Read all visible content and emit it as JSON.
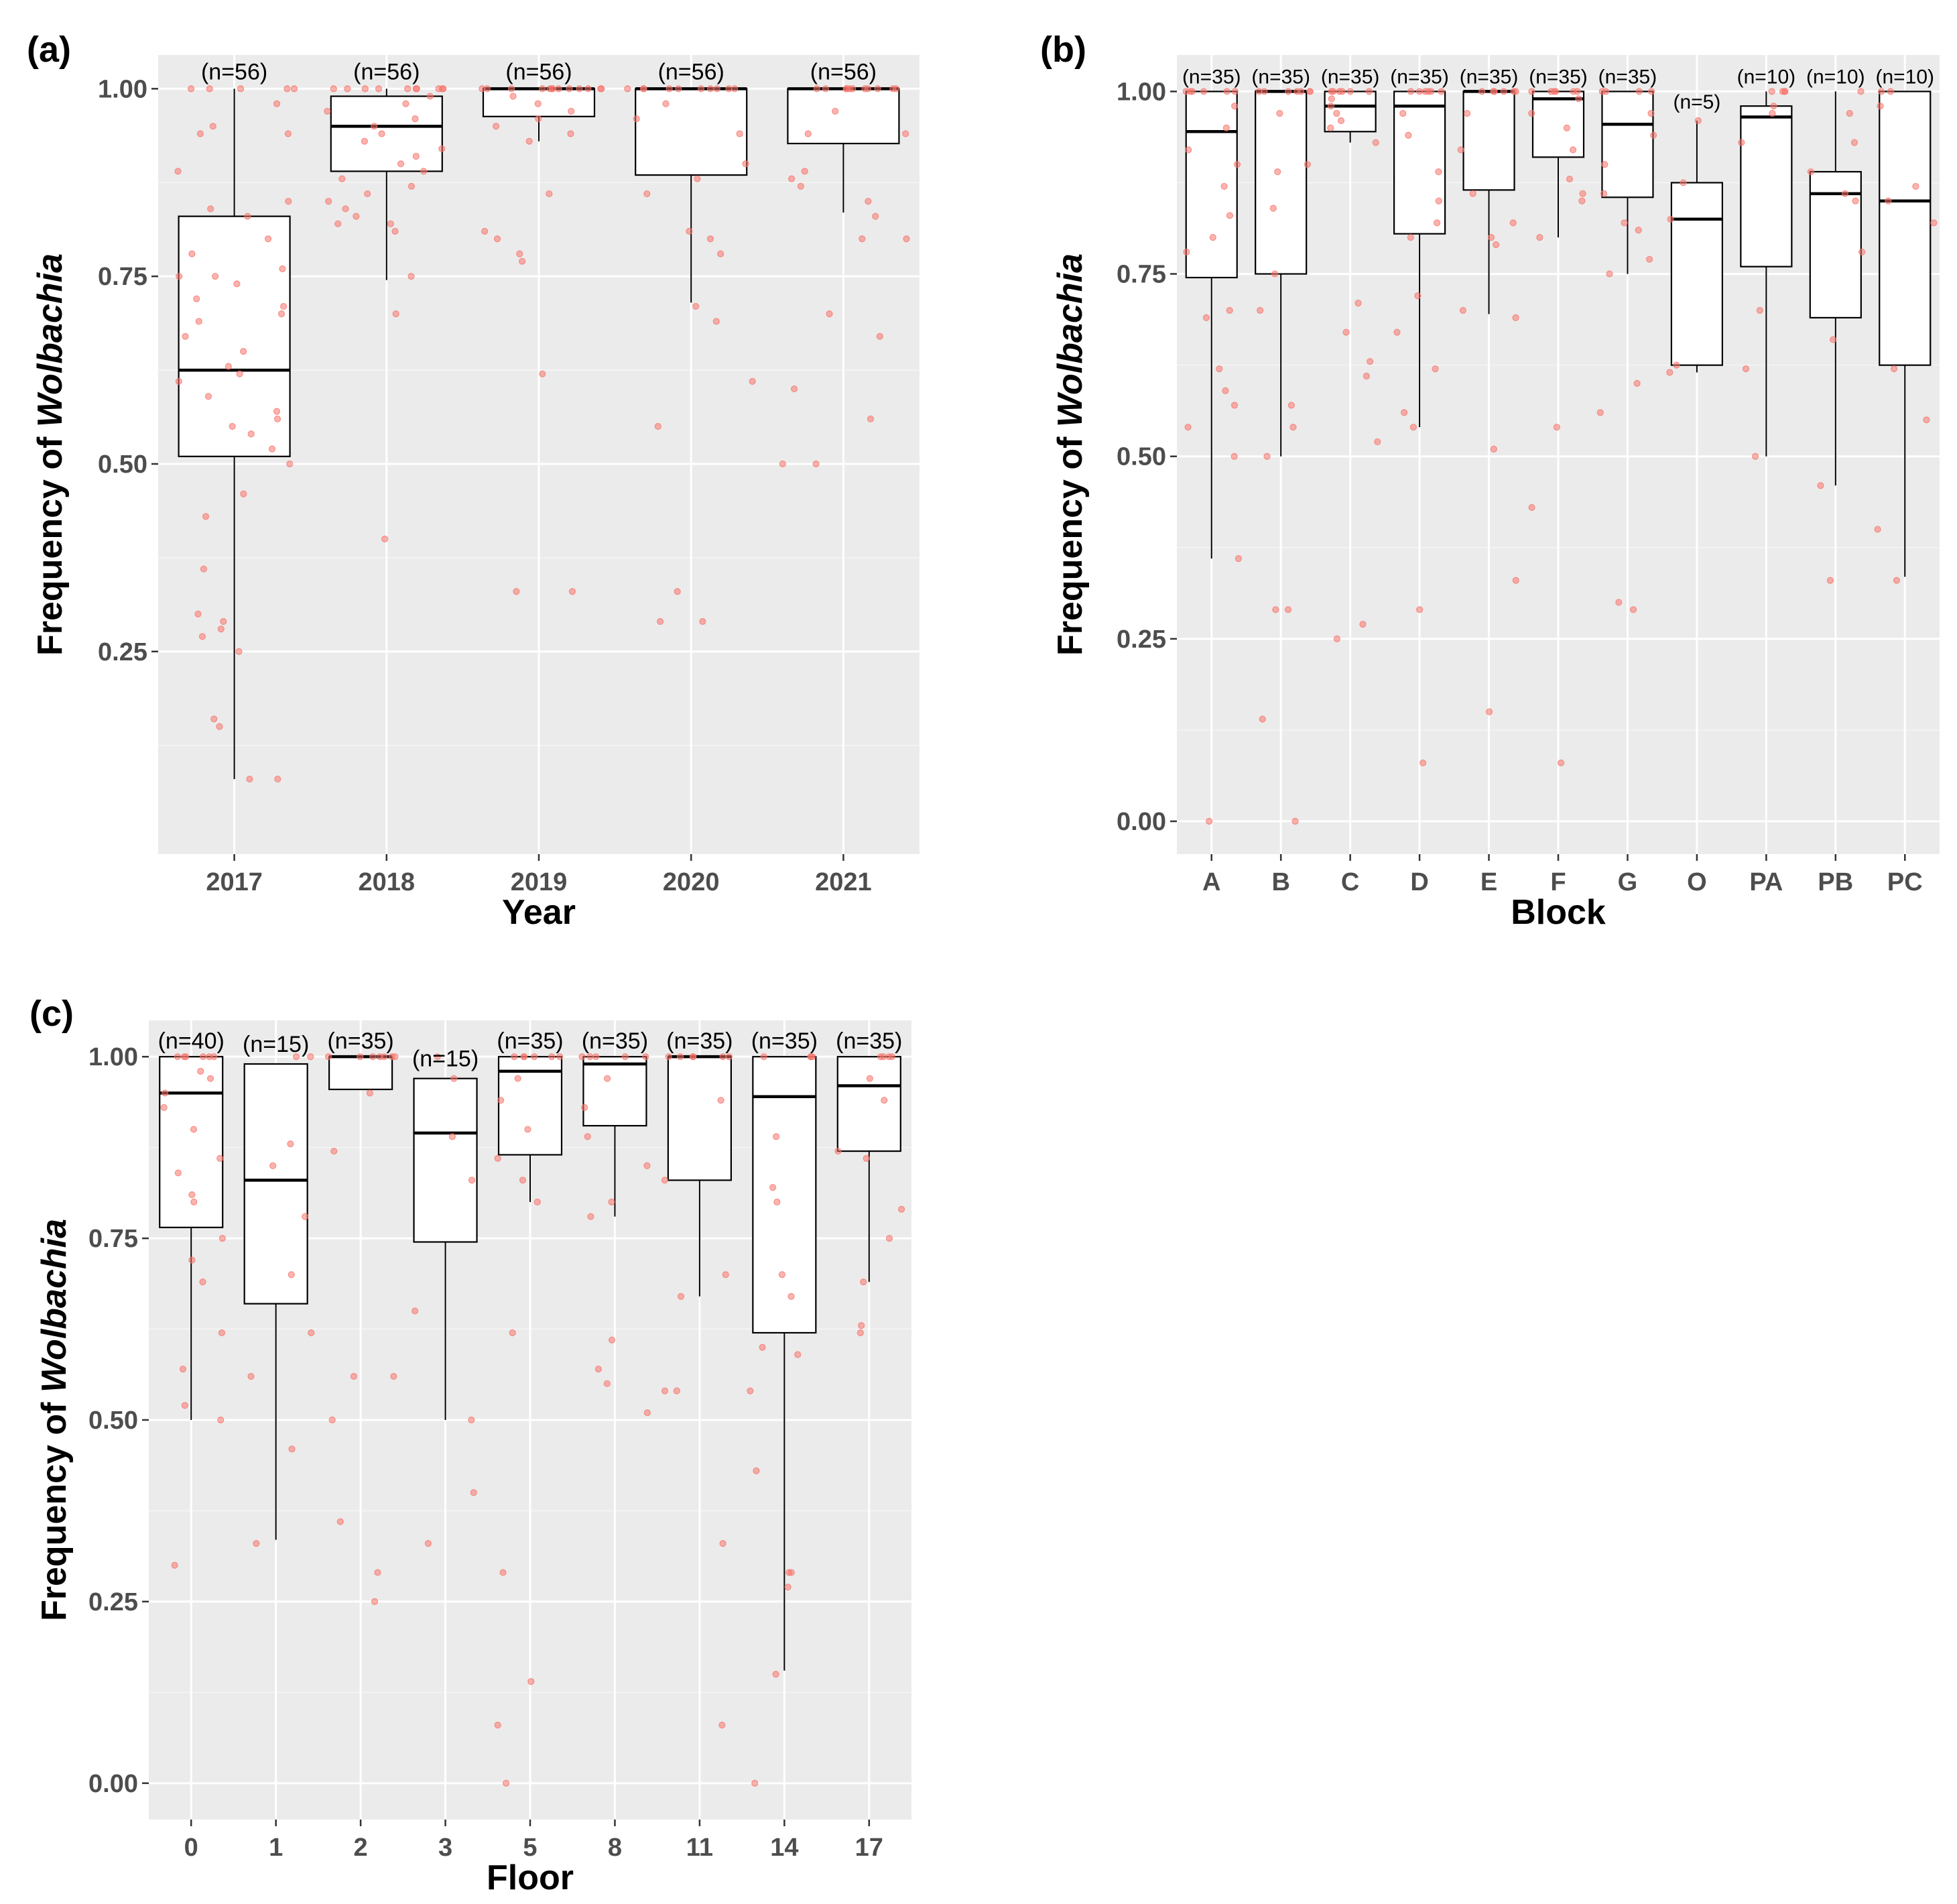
{
  "chart_data": [
    {
      "id": "a",
      "panel_label": "(a)",
      "type": "box",
      "xlabel": "Year",
      "ylabel_prefix": "Frequency of ",
      "ylabel_italic": "Wolbachia",
      "ylim": [
        -0.02,
        1.045
      ],
      "yticks": [
        "0.25",
        "0.50",
        "0.75",
        "1.00"
      ],
      "categories": [
        "2017",
        "2018",
        "2019",
        "2020",
        "2021"
      ],
      "n_labels": [
        "(n=56)",
        "(n=56)",
        "(n=56)",
        "(n=56)",
        "(n=56)"
      ],
      "boxes": [
        {
          "min": 0.08,
          "q1": 0.51,
          "median": 0.625,
          "q3": 0.83,
          "max": 1.0
        },
        {
          "min": 0.745,
          "q1": 0.89,
          "median": 0.95,
          "q3": 0.99,
          "max": 1.0
        },
        {
          "min": 0.93,
          "q1": 0.963,
          "median": 1.0,
          "q3": 1.0,
          "max": 1.0
        },
        {
          "min": 0.715,
          "q1": 0.885,
          "median": 1.0,
          "q3": 1.0,
          "max": 1.0
        },
        {
          "min": 0.835,
          "q1": 0.927,
          "median": 1.0,
          "q3": 1.0,
          "max": 1.0
        }
      ],
      "points": [
        [
          0.08,
          0.08,
          0.15,
          0.16,
          0.25,
          0.27,
          0.28,
          0.29,
          0.3,
          0.36,
          0.43,
          0.46,
          0.5,
          0.52,
          0.54,
          0.55,
          0.56,
          0.57,
          0.59,
          0.61,
          0.62,
          0.63,
          0.65,
          0.67,
          0.69,
          0.7,
          0.71,
          0.72,
          0.74,
          0.75,
          0.75,
          0.76,
          0.78,
          0.8,
          0.83,
          0.84,
          0.85,
          0.89,
          0.94,
          0.94,
          0.95,
          0.98,
          1.0,
          1.0,
          1.0,
          1.0,
          1.0
        ],
        [
          0.4,
          0.7,
          0.75,
          0.81,
          0.82,
          0.82,
          0.83,
          0.84,
          0.85,
          0.86,
          0.87,
          0.88,
          0.89,
          0.9,
          0.91,
          0.92,
          0.93,
          0.94,
          0.95,
          0.96,
          0.97,
          0.98,
          0.99,
          1.0,
          1.0,
          1.0,
          1.0,
          1.0,
          1.0,
          1.0,
          1.0,
          1.0,
          1.0
        ],
        [
          0.33,
          0.33,
          0.62,
          0.77,
          0.78,
          0.8,
          0.81,
          0.86,
          0.93,
          0.94,
          0.95,
          0.96,
          0.97,
          0.98,
          0.99,
          1.0,
          1.0,
          1.0,
          1.0,
          1.0,
          1.0,
          1.0,
          1.0,
          1.0,
          1.0,
          1.0,
          1.0,
          1.0
        ],
        [
          0.29,
          0.29,
          0.33,
          0.55,
          0.61,
          0.69,
          0.71,
          0.78,
          0.8,
          0.81,
          0.86,
          0.88,
          0.9,
          0.94,
          0.96,
          0.98,
          1.0,
          1.0,
          1.0,
          1.0,
          1.0,
          1.0,
          1.0,
          1.0,
          1.0,
          1.0
        ],
        [
          0.5,
          0.5,
          0.56,
          0.6,
          0.67,
          0.7,
          0.8,
          0.8,
          0.83,
          0.85,
          0.87,
          0.88,
          0.89,
          0.94,
          0.94,
          0.97,
          1.0,
          1.0,
          1.0,
          1.0,
          1.0,
          1.0,
          1.0,
          1.0,
          1.0,
          1.0,
          1.0
        ]
      ]
    },
    {
      "id": "b",
      "panel_label": "(b)",
      "type": "box",
      "xlabel": "Block",
      "ylabel_prefix": "Frequency of ",
      "ylabel_italic": "Wolbachia",
      "ylim": [
        -0.045,
        1.05
      ],
      "yticks": [
        "0.00",
        "0.25",
        "0.50",
        "0.75",
        "1.00"
      ],
      "categories": [
        "A",
        "B",
        "C",
        "D",
        "E",
        "F",
        "G",
        "O",
        "PA",
        "PB",
        "PC"
      ],
      "n_labels": [
        "(n=35)",
        "(n=35)",
        "(n=35)",
        "(n=35)",
        "(n=35)",
        "(n=35)",
        "(n=35)",
        "(n=5)",
        "(n=10)",
        "(n=10)",
        "(n=10)"
      ],
      "boxes": [
        {
          "min": 0.36,
          "q1": 0.745,
          "median": 0.945,
          "q3": 1.0,
          "max": 1.0
        },
        {
          "min": 0.5,
          "q1": 0.75,
          "median": 1.0,
          "q3": 1.0,
          "max": 1.0
        },
        {
          "min": 0.93,
          "q1": 0.945,
          "median": 0.98,
          "q3": 1.0,
          "max": 1.0
        },
        {
          "min": 0.54,
          "q1": 0.805,
          "median": 0.98,
          "q3": 1.0,
          "max": 1.0
        },
        {
          "min": 0.695,
          "q1": 0.865,
          "median": 1.0,
          "q3": 1.0,
          "max": 1.0
        },
        {
          "min": 0.8,
          "q1": 0.91,
          "median": 0.99,
          "q3": 1.0,
          "max": 1.0
        },
        {
          "min": 0.75,
          "q1": 0.855,
          "median": 0.955,
          "q3": 1.0,
          "max": 1.0
        },
        {
          "min": 0.615,
          "q1": 0.625,
          "median": 0.825,
          "q3": 0.875,
          "max": 0.96
        },
        {
          "min": 0.5,
          "q1": 0.76,
          "median": 0.965,
          "q3": 0.98,
          "max": 1.0
        },
        {
          "min": 0.46,
          "q1": 0.69,
          "median": 0.86,
          "q3": 0.89,
          "max": 1.0
        },
        {
          "min": 0.335,
          "q1": 0.625,
          "median": 0.85,
          "q3": 1.0,
          "max": 1.0
        }
      ],
      "points": [
        [
          0.0,
          0.36,
          0.5,
          0.54,
          0.57,
          0.59,
          0.62,
          0.69,
          0.7,
          0.78,
          0.8,
          0.83,
          0.87,
          0.9,
          0.92,
          0.95,
          0.98,
          1.0,
          1.0,
          1.0,
          1.0,
          1.0,
          1.0
        ],
        [
          0.0,
          0.14,
          0.29,
          0.29,
          0.5,
          0.54,
          0.57,
          0.7,
          0.75,
          0.84,
          0.89,
          0.9,
          0.97,
          1.0,
          1.0,
          1.0,
          1.0,
          1.0,
          1.0,
          1.0
        ],
        [
          0.25,
          0.27,
          0.52,
          0.61,
          0.63,
          0.67,
          0.71,
          0.93,
          0.95,
          0.96,
          0.97,
          0.98,
          0.99,
          1.0,
          1.0,
          1.0,
          1.0,
          1.0,
          1.0
        ],
        [
          0.08,
          0.29,
          0.54,
          0.56,
          0.62,
          0.67,
          0.72,
          0.8,
          0.82,
          0.85,
          0.89,
          0.94,
          0.97,
          1.0,
          1.0,
          1.0,
          1.0,
          1.0,
          1.0
        ],
        [
          0.15,
          0.33,
          0.51,
          0.69,
          0.7,
          0.79,
          0.8,
          0.82,
          0.86,
          0.92,
          0.97,
          1.0,
          1.0,
          1.0,
          1.0,
          1.0,
          1.0
        ],
        [
          0.08,
          0.43,
          0.54,
          0.8,
          0.85,
          0.86,
          0.88,
          0.92,
          0.95,
          0.97,
          0.99,
          1.0,
          1.0,
          1.0,
          1.0,
          1.0,
          1.0
        ],
        [
          0.29,
          0.3,
          0.56,
          0.6,
          0.75,
          0.77,
          0.81,
          0.82,
          0.86,
          0.9,
          0.94,
          0.97,
          1.0,
          1.0,
          1.0,
          1.0
        ],
        [
          0.615,
          0.625,
          0.825,
          0.875,
          0.96
        ],
        [
          0.5,
          0.62,
          0.7,
          0.93,
          0.97,
          0.98,
          1.0,
          1.0,
          1.0,
          1.0
        ],
        [
          0.33,
          0.46,
          0.66,
          0.78,
          0.85,
          0.86,
          0.89,
          0.93,
          0.97,
          1.0
        ],
        [
          0.33,
          0.4,
          0.55,
          0.62,
          0.82,
          0.85,
          0.87,
          0.98,
          1.0,
          1.0
        ]
      ]
    },
    {
      "id": "c",
      "panel_label": "(c)",
      "type": "box",
      "xlabel": "Floor",
      "ylabel_prefix": "Frequency of ",
      "ylabel_italic": "Wolbachia",
      "ylim": [
        -0.05,
        1.05
      ],
      "yticks": [
        "0.00",
        "0.25",
        "0.50",
        "0.75",
        "1.00"
      ],
      "categories": [
        "0",
        "1",
        "2",
        "3",
        "5",
        "8",
        "11",
        "14",
        "17"
      ],
      "n_labels": [
        "(n=40)",
        "(n=15)",
        "(n=35)",
        "(n=15)",
        "(n=35)",
        "(n=35)",
        "(n=35)",
        "(n=35)",
        "(n=35)"
      ],
      "boxes": [
        {
          "min": 0.5,
          "q1": 0.765,
          "median": 0.95,
          "q3": 1.0,
          "max": 1.0
        },
        {
          "min": 0.335,
          "q1": 0.66,
          "median": 0.83,
          "q3": 0.99,
          "max": 0.99
        },
        {
          "min": 0.955,
          "q1": 0.955,
          "median": 1.0,
          "q3": 1.0,
          "max": 1.0
        },
        {
          "min": 0.5,
          "q1": 0.745,
          "median": 0.895,
          "q3": 0.97,
          "max": 0.97
        },
        {
          "min": 0.8,
          "q1": 0.865,
          "median": 0.98,
          "q3": 1.0,
          "max": 1.0
        },
        {
          "min": 0.78,
          "q1": 0.905,
          "median": 0.99,
          "q3": 1.0,
          "max": 1.0
        },
        {
          "min": 0.67,
          "q1": 0.83,
          "median": 1.0,
          "q3": 1.0,
          "max": 1.0
        },
        {
          "min": 0.155,
          "q1": 0.62,
          "median": 0.945,
          "q3": 1.0,
          "max": 1.0
        },
        {
          "min": 0.69,
          "q1": 0.87,
          "median": 0.96,
          "q3": 1.0,
          "max": 1.0
        }
      ],
      "points": [
        [
          0.3,
          0.5,
          0.52,
          0.57,
          0.62,
          0.69,
          0.72,
          0.75,
          0.8,
          0.81,
          0.84,
          0.86,
          0.9,
          0.93,
          0.95,
          0.97,
          0.98,
          1.0,
          1.0,
          1.0,
          1.0,
          1.0,
          1.0
        ],
        [
          0.33,
          0.46,
          0.56,
          0.62,
          0.7,
          0.78,
          0.85,
          0.88,
          1.0,
          1.0
        ],
        [
          0.25,
          0.29,
          0.36,
          0.5,
          0.56,
          0.56,
          0.87,
          0.95,
          1.0,
          1.0,
          1.0,
          1.0,
          1.0,
          1.0,
          1.0
        ],
        [
          0.33,
          0.4,
          0.5,
          0.65,
          0.83,
          0.89,
          0.97,
          1.0
        ],
        [
          0.0,
          0.08,
          0.14,
          0.29,
          0.62,
          0.8,
          0.83,
          0.86,
          0.9,
          0.94,
          0.97,
          1.0,
          1.0,
          1.0,
          1.0,
          1.0,
          1.0
        ],
        [
          0.51,
          0.55,
          0.57,
          0.61,
          0.78,
          0.8,
          0.85,
          0.89,
          0.93,
          0.97,
          1.0,
          1.0,
          1.0,
          1.0,
          1.0
        ],
        [
          0.08,
          0.33,
          0.54,
          0.54,
          0.67,
          0.7,
          0.83,
          0.94,
          1.0,
          1.0,
          1.0,
          1.0,
          1.0,
          1.0
        ],
        [
          0.0,
          0.15,
          0.27,
          0.29,
          0.29,
          0.43,
          0.54,
          0.59,
          0.6,
          0.67,
          0.7,
          0.8,
          0.82,
          0.89,
          1.0,
          1.0,
          1.0,
          1.0
        ],
        [
          0.62,
          0.63,
          0.69,
          0.75,
          0.79,
          0.86,
          0.87,
          0.94,
          0.97,
          1.0,
          1.0,
          1.0,
          1.0
        ]
      ]
    }
  ]
}
